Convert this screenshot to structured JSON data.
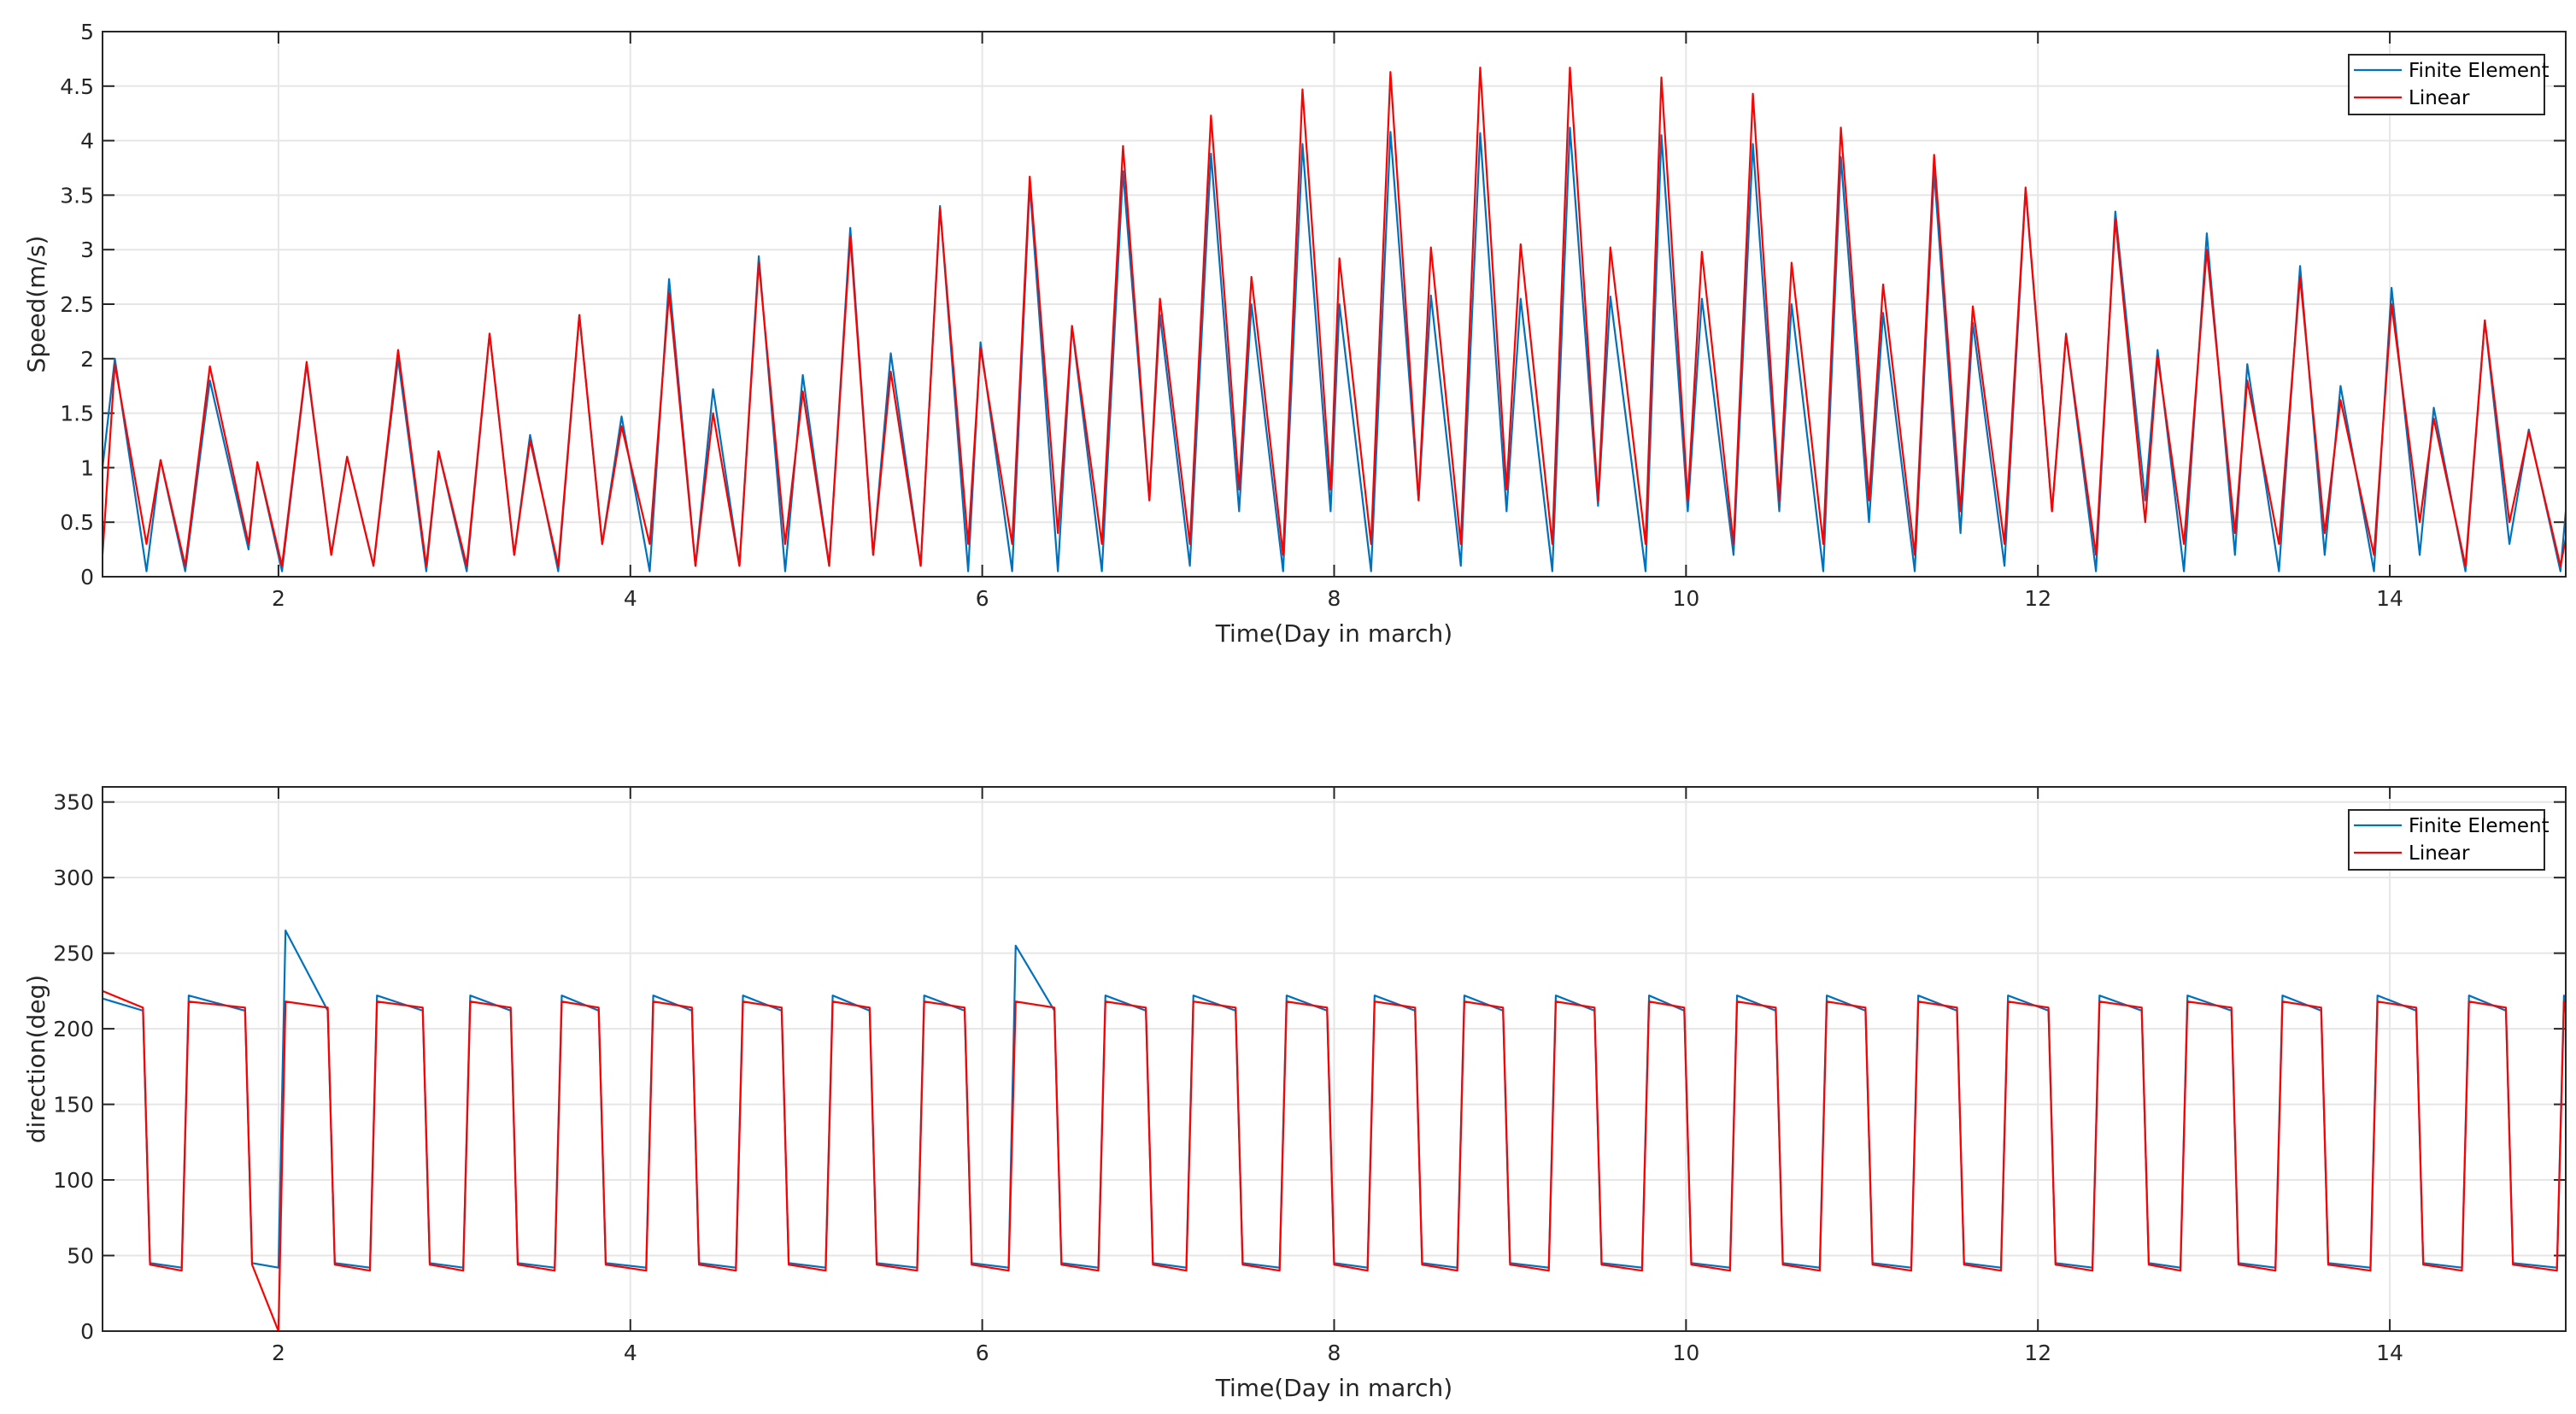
{
  "chart_data": [
    {
      "type": "line",
      "xlabel": "Time(Day in march)",
      "ylabel": "Speed(m/s)",
      "xlim": [
        1,
        15
      ],
      "ylim": [
        0,
        5
      ],
      "xticks": [
        2,
        4,
        6,
        8,
        10,
        12,
        14
      ],
      "yticks": [
        0,
        0.5,
        1,
        1.5,
        2,
        2.5,
        3,
        3.5,
        4,
        4.5,
        5
      ],
      "grid": true,
      "legend": "upper right",
      "x": [
        1.0,
        1.07,
        1.25,
        1.33,
        1.47,
        1.61,
        1.83,
        1.88,
        2.02,
        2.16,
        2.3,
        2.39,
        2.54,
        2.68,
        2.84,
        2.91,
        3.07,
        3.2,
        3.34,
        3.43,
        3.59,
        3.71,
        3.84,
        3.95,
        4.11,
        4.22,
        4.37,
        4.47,
        4.62,
        4.73,
        4.88,
        4.98,
        5.13,
        5.25,
        5.38,
        5.48,
        5.65,
        5.76,
        5.92,
        5.99,
        6.17,
        6.27,
        6.43,
        6.51,
        6.68,
        6.8,
        6.95,
        7.01,
        7.18,
        7.3,
        7.46,
        7.53,
        7.71,
        7.82,
        7.98,
        8.03,
        8.21,
        8.32,
        8.48,
        8.55,
        8.72,
        8.83,
        8.98,
        9.06,
        9.24,
        9.34,
        9.5,
        9.57,
        9.77,
        9.86,
        10.01,
        10.09,
        10.27,
        10.38,
        10.53,
        10.6,
        10.78,
        10.88,
        11.04,
        11.12,
        11.3,
        11.41,
        11.56,
        11.63,
        11.81,
        11.93,
        12.08,
        12.16,
        12.33,
        12.44,
        12.61,
        12.68,
        12.83,
        12.96,
        13.12,
        13.19,
        13.37,
        13.49,
        13.63,
        13.72,
        13.91,
        14.01,
        14.17,
        14.25,
        14.43,
        14.54,
        14.68,
        14.79,
        14.97,
        15
      ],
      "series": [
        {
          "name": "Finite Element",
          "color": "#0072bd",
          "values": [
            1.0,
            2.0,
            0.05,
            1.07,
            0.05,
            1.8,
            0.25,
            1.05,
            0.05,
            1.95,
            0.2,
            1.1,
            0.1,
            2.0,
            0.05,
            1.15,
            0.05,
            2.23,
            0.2,
            1.3,
            0.05,
            2.4,
            0.3,
            1.47,
            0.05,
            2.73,
            0.1,
            1.72,
            0.1,
            2.94,
            0.05,
            1.85,
            0.1,
            3.2,
            0.2,
            2.05,
            0.1,
            3.4,
            0.05,
            2.15,
            0.05,
            3.6,
            0.05,
            2.3,
            0.05,
            3.72,
            0.7,
            2.4,
            0.1,
            3.88,
            0.6,
            2.5,
            0.05,
            3.97,
            0.6,
            2.5,
            0.05,
            4.08,
            0.7,
            2.58,
            0.1,
            4.07,
            0.6,
            2.55,
            0.05,
            4.12,
            0.65,
            2.57,
            0.05,
            4.05,
            0.6,
            2.55,
            0.2,
            3.97,
            0.6,
            2.5,
            0.05,
            3.85,
            0.5,
            2.42,
            0.05,
            3.72,
            0.4,
            2.33,
            0.1,
            3.55,
            0.6,
            2.23,
            0.05,
            3.35,
            0.7,
            2.08,
            0.05,
            3.15,
            0.2,
            1.95,
            0.05,
            2.85,
            0.2,
            1.75,
            0.05,
            2.65,
            0.2,
            1.55,
            0.05,
            2.35,
            0.3,
            1.35,
            0.05,
            0.6
          ]
        },
        {
          "name": "Linear",
          "color": "#ff0000",
          "values": [
            0.2,
            1.95,
            0.3,
            1.07,
            0.1,
            1.93,
            0.3,
            1.05,
            0.1,
            1.97,
            0.2,
            1.1,
            0.1,
            2.08,
            0.1,
            1.15,
            0.1,
            2.23,
            0.2,
            1.25,
            0.1,
            2.4,
            0.3,
            1.38,
            0.3,
            2.6,
            0.1,
            1.5,
            0.1,
            2.88,
            0.3,
            1.7,
            0.1,
            3.12,
            0.2,
            1.88,
            0.1,
            3.38,
            0.3,
            2.1,
            0.3,
            3.67,
            0.4,
            2.3,
            0.3,
            3.95,
            0.7,
            2.55,
            0.3,
            4.23,
            0.8,
            2.75,
            0.2,
            4.47,
            0.8,
            2.92,
            0.3,
            4.63,
            0.7,
            3.02,
            0.3,
            4.67,
            0.8,
            3.05,
            0.3,
            4.67,
            0.7,
            3.02,
            0.3,
            4.58,
            0.7,
            2.98,
            0.3,
            4.43,
            0.7,
            2.88,
            0.3,
            4.12,
            0.7,
            2.68,
            0.2,
            3.87,
            0.6,
            2.48,
            0.3,
            3.57,
            0.6,
            2.22,
            0.2,
            3.28,
            0.5,
            2.02,
            0.3,
            3.0,
            0.4,
            1.8,
            0.3,
            2.75,
            0.4,
            1.62,
            0.2,
            2.5,
            0.5,
            1.45,
            0.1,
            2.35,
            0.5,
            1.33,
            0.1,
            0.35
          ]
        }
      ]
    },
    {
      "type": "line",
      "xlabel": "Time(Day in march)",
      "ylabel": "direction(deg)",
      "xlim": [
        1,
        15
      ],
      "ylim": [
        0,
        360
      ],
      "xticks": [
        2,
        4,
        6,
        8,
        10,
        12,
        14
      ],
      "yticks": [
        0,
        50,
        100,
        150,
        200,
        250,
        300,
        350
      ],
      "grid": true,
      "legend": "upper right",
      "x": [
        1,
        1.23,
        1.27,
        1.45,
        1.49,
        1.81,
        1.85,
        2.0,
        2.04,
        2.28,
        2.32,
        2.52,
        2.56,
        2.82,
        2.86,
        3.05,
        3.09,
        3.32,
        3.36,
        3.57,
        3.61,
        3.82,
        3.86,
        4.09,
        4.13,
        4.35,
        4.39,
        4.6,
        4.64,
        4.86,
        4.9,
        5.11,
        5.15,
        5.36,
        5.4,
        5.63,
        5.67,
        5.9,
        5.94,
        6.15,
        6.19,
        6.41,
        6.45,
        6.66,
        6.7,
        6.93,
        6.97,
        7.16,
        7.2,
        7.44,
        7.48,
        7.69,
        7.73,
        7.96,
        8.0,
        8.19,
        8.23,
        8.46,
        8.5,
        8.7,
        8.74,
        8.96,
        9.0,
        9.22,
        9.26,
        9.48,
        9.52,
        9.75,
        9.79,
        9.99,
        10.03,
        10.25,
        10.29,
        10.51,
        10.55,
        10.76,
        10.8,
        11.02,
        11.06,
        11.28,
        11.32,
        11.54,
        11.58,
        11.79,
        11.83,
        12.06,
        12.1,
        12.31,
        12.35,
        12.59,
        12.63,
        12.81,
        12.85,
        13.1,
        13.14,
        13.35,
        13.39,
        13.61,
        13.65,
        13.89,
        13.93,
        14.15,
        14.19,
        14.41,
        14.45,
        14.66,
        14.7,
        14.95,
        14.99,
        15
      ],
      "series": [
        {
          "name": "Finite Element",
          "color": "#0072bd",
          "values": [
            220,
            212,
            45,
            42,
            222,
            212,
            45,
            42,
            265,
            212,
            45,
            42,
            222,
            212,
            45,
            42,
            222,
            212,
            45,
            42,
            222,
            212,
            45,
            42,
            222,
            212,
            45,
            42,
            222,
            212,
            45,
            42,
            222,
            212,
            45,
            42,
            222,
            212,
            45,
            42,
            255,
            212,
            45,
            42,
            222,
            212,
            45,
            42,
            222,
            212,
            45,
            42,
            222,
            212,
            45,
            42,
            222,
            212,
            45,
            42,
            222,
            212,
            45,
            42,
            222,
            212,
            45,
            42,
            222,
            212,
            45,
            42,
            222,
            212,
            45,
            42,
            222,
            212,
            45,
            42,
            222,
            212,
            45,
            42,
            222,
            212,
            45,
            42,
            222,
            212,
            45,
            42,
            222,
            212,
            45,
            42,
            222,
            212,
            45,
            42,
            222,
            212,
            45,
            42,
            222,
            212,
            45,
            42,
            222,
            210
          ]
        },
        {
          "name": "Linear",
          "color": "#ff0000",
          "values": [
            225,
            214,
            44,
            40,
            218,
            214,
            44,
            0,
            218,
            214,
            44,
            40,
            218,
            214,
            44,
            40,
            218,
            214,
            44,
            40,
            218,
            214,
            44,
            40,
            218,
            214,
            44,
            40,
            218,
            214,
            44,
            40,
            218,
            214,
            44,
            40,
            218,
            214,
            44,
            40,
            218,
            214,
            44,
            40,
            218,
            214,
            44,
            40,
            218,
            214,
            44,
            40,
            218,
            214,
            44,
            40,
            218,
            214,
            44,
            40,
            218,
            214,
            44,
            40,
            218,
            214,
            44,
            40,
            218,
            214,
            44,
            40,
            218,
            214,
            44,
            40,
            218,
            214,
            44,
            40,
            218,
            214,
            44,
            40,
            218,
            214,
            44,
            40,
            218,
            214,
            44,
            40,
            218,
            214,
            44,
            40,
            218,
            214,
            44,
            40,
            218,
            214,
            44,
            40,
            218,
            214,
            44,
            40,
            218,
            212
          ]
        }
      ]
    }
  ]
}
